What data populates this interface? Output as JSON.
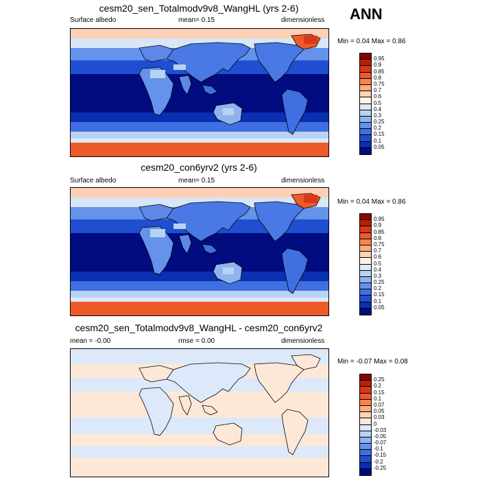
{
  "season": "ANN",
  "panels": [
    {
      "title": "cesm20_sen_Totalmodv9v8_WangHL (yrs 2-6)",
      "left_label": "Surface albedo",
      "center_label": "mean=   0.15",
      "right_label": "dimensionless",
      "minmax": "Min =  0.04 Max =  0.86",
      "colorbar": {
        "labels": [
          "0.95",
          "0.9",
          "0.85",
          "0.8",
          "0.75",
          "0.7",
          "0.6",
          "0.5",
          "0.4",
          "0.3",
          "0.25",
          "0.2",
          "0.15",
          "0.1",
          "0.05"
        ],
        "colors": [
          "#8b0000",
          "#b81f0a",
          "#d93a15",
          "#ee5a2a",
          "#f7844e",
          "#fbac80",
          "#fdd3b6",
          "#fff3e8",
          "#dbe9fa",
          "#b8d2f3",
          "#8fb3ee",
          "#6592ea",
          "#3f6fe0",
          "#1f4fd0",
          "#0a2fb0",
          "#000c80"
        ]
      },
      "map_type": "albedo"
    },
    {
      "title": "cesm20_con6yrv2 (yrs 2-6)",
      "left_label": "Surface albedo",
      "center_label": "mean=   0.15",
      "right_label": "dimensionless",
      "minmax": "Min =  0.04 Max =  0.86",
      "colorbar": {
        "labels": [
          "0.95",
          "0.9",
          "0.85",
          "0.8",
          "0.75",
          "0.7",
          "0.6",
          "0.5",
          "0.4",
          "0.3",
          "0.25",
          "0.2",
          "0.15",
          "0.1",
          "0.05"
        ],
        "colors": [
          "#8b0000",
          "#b81f0a",
          "#d93a15",
          "#ee5a2a",
          "#f7844e",
          "#fbac80",
          "#fdd3b6",
          "#fff3e8",
          "#dbe9fa",
          "#b8d2f3",
          "#8fb3ee",
          "#6592ea",
          "#3f6fe0",
          "#1f4fd0",
          "#0a2fb0",
          "#000c80"
        ]
      },
      "map_type": "albedo"
    },
    {
      "title": "cesm20_sen_Totalmodv9v8_WangHL - cesm20_con6yrv2",
      "left_label": "mean =  -0.00",
      "center_label": "rmse =   0.00",
      "right_label": "dimensionless",
      "minmax": "Min =  -0.07 Max =  0.08",
      "colorbar": {
        "labels": [
          "0.25",
          "0.2",
          "0.15",
          "0.1",
          "0.07",
          "0.05",
          "0.03",
          "0",
          "-0.03",
          "-0.05",
          "-0.07",
          "-0.1",
          "-0.15",
          "-0.2",
          "-0.25"
        ],
        "colors": [
          "#8b0000",
          "#b81f0a",
          "#d93a15",
          "#ee5a2a",
          "#f7844e",
          "#fbac80",
          "#fdd3b6",
          "#fde8d8",
          "#dbe9fa",
          "#b8d2f3",
          "#8fb3ee",
          "#6592ea",
          "#3f6fe0",
          "#1f4fd0",
          "#0a2fb0",
          "#000c80"
        ]
      },
      "map_type": "diff"
    }
  ]
}
